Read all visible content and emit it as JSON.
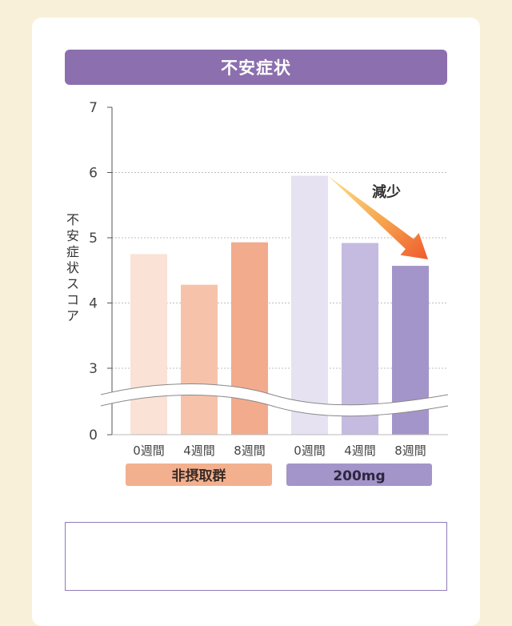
{
  "title": "不安症状",
  "chart_data": {
    "type": "bar",
    "ylabel": "不安症状スコア",
    "yticks": [
      0,
      3,
      4,
      5,
      6,
      7
    ],
    "ylim": [
      3,
      7
    ],
    "axis_break": true,
    "grid": "horizontal dotted",
    "categories": [
      "0週間",
      "4週間",
      "8週間",
      "0週間",
      "4週間",
      "8週間"
    ],
    "groups": [
      {
        "label": "非摂取群",
        "color": "#f2b08e",
        "values": [
          4.75,
          4.28,
          4.93
        ],
        "bar_colors": [
          "#fbe2d6",
          "#f6c3aa",
          "#f2ab8c"
        ]
      },
      {
        "label": "200mg",
        "color": "#a395c9",
        "values": [
          5.95,
          4.92,
          4.57
        ],
        "bar_colors": [
          "#e6e2f1",
          "#c5bbe0",
          "#a395c9"
        ]
      }
    ],
    "annotation": {
      "text": "減少",
      "arrow": "from group 2 first bar to last bar"
    }
  },
  "colors": {
    "title_bg": "#8c6fae",
    "page_bg": "#f8f0d8",
    "note_border": "#8f7cba"
  },
  "note_text": ""
}
